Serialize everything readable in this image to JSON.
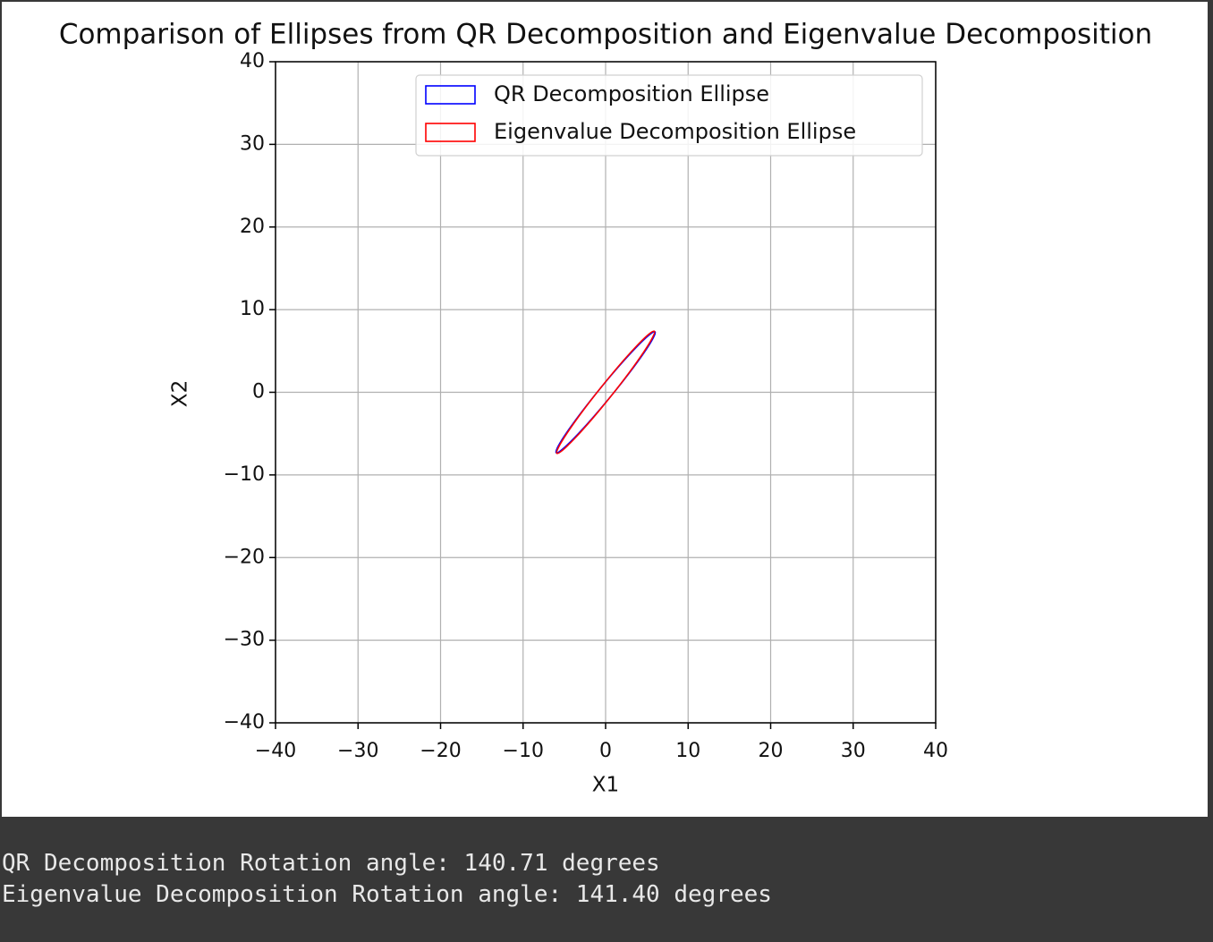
{
  "chart_data": {
    "type": "ellipse",
    "title": "Comparison of Ellipses from QR Decomposition and Eigenvalue Decomposition",
    "xlabel": "X1",
    "ylabel": "X2",
    "xlim": [
      -40,
      40
    ],
    "ylim": [
      -40,
      40
    ],
    "xticks": [
      {
        "value": -40,
        "label": "−40"
      },
      {
        "value": -30,
        "label": "−30"
      },
      {
        "value": -20,
        "label": "−20"
      },
      {
        "value": -10,
        "label": "−10"
      },
      0,
      10,
      20,
      30,
      40
    ],
    "yticks": [
      {
        "value": -40,
        "label": "−40"
      },
      {
        "value": -30,
        "label": "−30"
      },
      {
        "value": -20,
        "label": "−20"
      },
      {
        "value": -10,
        "label": "−10"
      },
      0,
      10,
      20,
      30,
      40
    ],
    "grid": true,
    "legend": "upper right",
    "series": [
      {
        "name": "QR Decomposition Ellipse",
        "color": "#0000ff",
        "center": [
          0,
          0
        ],
        "width": 1.6,
        "height": 18.9,
        "angle": 140.71
      },
      {
        "name": "Eigenvalue Decomposition Ellipse",
        "color": "#ff0000",
        "center": [
          0,
          0
        ],
        "width": 1.6,
        "height": 18.9,
        "angle": 141.4
      }
    ]
  },
  "output_lines": [
    "QR Decomposition Rotation angle: 140.71 degrees",
    "Eigenvalue Decomposition Rotation angle: 141.40 degrees"
  ]
}
